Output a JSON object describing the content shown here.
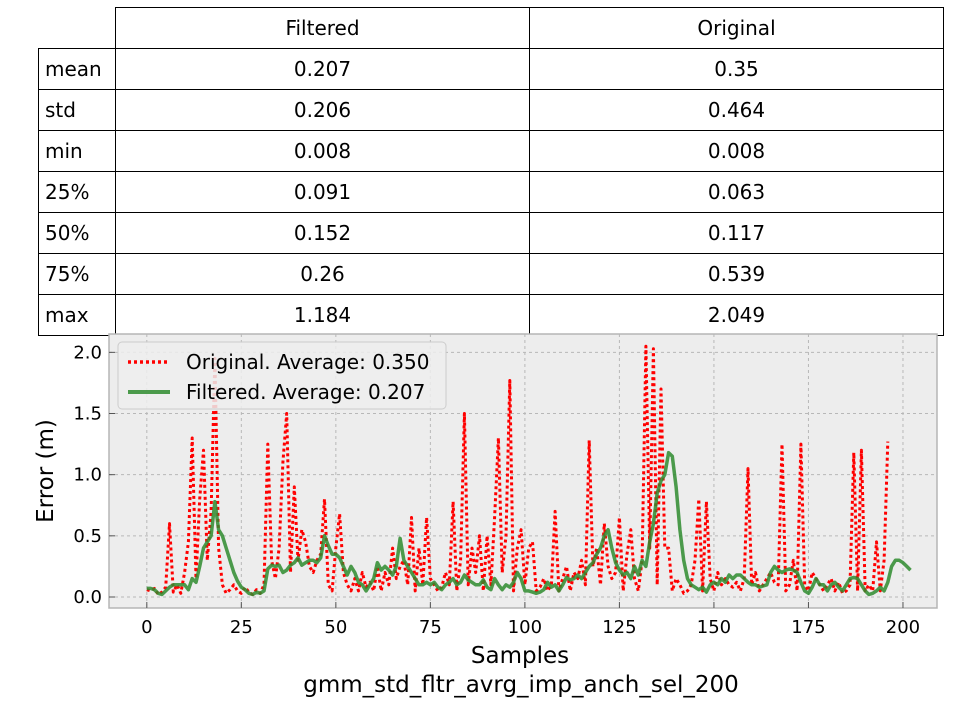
{
  "stats_table": {
    "columns": [
      "Filtered",
      "Original"
    ],
    "rows": [
      {
        "label": "mean",
        "values": [
          "0.207",
          "0.35"
        ]
      },
      {
        "label": "std",
        "values": [
          "0.206",
          "0.464"
        ]
      },
      {
        "label": "min",
        "values": [
          "0.008",
          "0.008"
        ]
      },
      {
        "label": "25%",
        "values": [
          "0.091",
          "0.063"
        ]
      },
      {
        "label": "50%",
        "values": [
          "0.152",
          "0.117"
        ]
      },
      {
        "label": "75%",
        "values": [
          "0.26",
          "0.539"
        ]
      },
      {
        "label": "max",
        "values": [
          "1.184",
          "2.049"
        ]
      }
    ]
  },
  "chart_data": {
    "type": "line",
    "title": "gmm_std_fltr_avrg_imp_anch_sel_200",
    "xlabel": "Samples",
    "ylabel": "Error (m)",
    "xlim": [
      -10,
      209
    ],
    "ylim": [
      -0.09,
      2.15
    ],
    "xticks": [
      0,
      25,
      50,
      75,
      100,
      125,
      150,
      175,
      200
    ],
    "yticks": [
      0.0,
      0.5,
      1.0,
      1.5,
      2.0
    ],
    "xtick_labels": [
      "0",
      "25",
      "50",
      "75",
      "100",
      "125",
      "150",
      "175",
      "200"
    ],
    "ytick_labels": [
      "0.0",
      "0.5",
      "1.0",
      "1.5",
      "2.0"
    ],
    "grid": true,
    "legend_position": "top-left",
    "series": [
      {
        "name": "Original. Average: 0.350",
        "color": "#ff0000",
        "style": "dotted",
        "values": [
          0.06,
          0.05,
          0.07,
          0.02,
          0.04,
          0.08,
          0.6,
          0.04,
          0.1,
          0.03,
          0.2,
          0.45,
          1.3,
          0.15,
          0.8,
          1.2,
          0.3,
          0.7,
          1.95,
          0.4,
          0.1,
          0.03,
          0.06,
          0.1,
          0.05,
          0.03,
          0.08,
          0.04,
          0.02,
          0.06,
          0.03,
          0.1,
          1.25,
          0.3,
          0.15,
          0.4,
          1.1,
          1.5,
          0.2,
          0.9,
          0.3,
          0.55,
          0.45,
          0.25,
          0.2,
          0.3,
          0.35,
          0.8,
          0.1,
          0.05,
          0.4,
          0.68,
          0.2,
          0.1,
          0.05,
          0.15,
          0.05,
          0.2,
          0.08,
          0.12,
          0.05,
          0.25,
          0.05,
          0.2,
          0.1,
          0.4,
          0.15,
          0.25,
          0.3,
          0.1,
          0.65,
          0.05,
          0.4,
          0.1,
          0.65,
          0.15,
          0.1,
          0.05,
          0.08,
          0.2,
          0.1,
          0.78,
          0.05,
          0.3,
          1.5,
          0.1,
          0.4,
          0.2,
          0.5,
          0.05,
          0.5,
          0.1,
          0.65,
          1.3,
          0.2,
          0.5,
          1.77,
          0.05,
          0.4,
          0.55,
          0.1,
          0.4,
          0.45,
          0.05,
          0.08,
          0.15,
          0.05,
          0.1,
          0.7,
          0.05,
          0.15,
          0.25,
          0.05,
          0.2,
          0.15,
          0.3,
          0.1,
          1.28,
          0.25,
          0.4,
          0.1,
          0.6,
          0.25,
          0.15,
          0.2,
          0.65,
          0.05,
          0.35,
          0.55,
          0.15,
          0.05,
          0.3,
          2.05,
          0.4,
          2.03,
          0.1,
          1.7,
          0.4,
          0.4,
          0.05,
          0.15,
          0.1,
          0.03,
          0.05,
          0.1,
          0.3,
          0.8,
          0.05,
          0.78,
          0.15,
          0.05,
          0.2,
          0.1,
          0.15,
          0.1,
          0.08,
          0.12,
          0.05,
          0.15,
          1.05,
          0.1,
          0.2,
          0.05,
          0.1,
          0.15,
          0.2,
          0.12,
          0.1,
          1.25,
          0.05,
          0.1,
          0.3,
          0.05,
          1.25,
          0.1,
          0.05,
          0.2,
          0.15,
          0.1,
          0.05,
          0.1,
          0.15,
          0.05,
          0.12,
          0.03,
          0.05,
          0.1,
          1.18,
          0.05,
          1.2,
          0.05,
          0.1,
          0.05,
          0.45,
          0.05,
          0.3,
          1.27
        ]
      },
      {
        "name": "Filtered. Average: 0.207",
        "color": "#2e8b2e",
        "style": "solid",
        "values": [
          0.07,
          0.07,
          0.06,
          0.03,
          0.02,
          0.05,
          0.08,
          0.1,
          0.1,
          0.1,
          0.1,
          0.06,
          0.15,
          0.12,
          0.25,
          0.4,
          0.45,
          0.5,
          0.78,
          0.55,
          0.5,
          0.4,
          0.3,
          0.2,
          0.13,
          0.08,
          0.06,
          0.03,
          0.02,
          0.04,
          0.03,
          0.05,
          0.23,
          0.26,
          0.25,
          0.26,
          0.2,
          0.22,
          0.26,
          0.28,
          0.32,
          0.26,
          0.28,
          0.3,
          0.3,
          0.28,
          0.32,
          0.5,
          0.42,
          0.35,
          0.35,
          0.32,
          0.25,
          0.18,
          0.25,
          0.2,
          0.12,
          0.1,
          0.05,
          0.1,
          0.15,
          0.28,
          0.22,
          0.25,
          0.22,
          0.18,
          0.25,
          0.48,
          0.3,
          0.25,
          0.2,
          0.15,
          0.1,
          0.1,
          0.12,
          0.1,
          0.12,
          0.08,
          0.06,
          0.1,
          0.12,
          0.15,
          0.1,
          0.12,
          0.18,
          0.14,
          0.12,
          0.1,
          0.1,
          0.14,
          0.08,
          0.06,
          0.15,
          0.1,
          0.06,
          0.1,
          0.08,
          0.12,
          0.2,
          0.15,
          0.05,
          0.05,
          0.04,
          0.03,
          0.04,
          0.06,
          0.12,
          0.08,
          0.1,
          0.05,
          0.1,
          0.16,
          0.14,
          0.15,
          0.18,
          0.15,
          0.2,
          0.25,
          0.28,
          0.35,
          0.4,
          0.5,
          0.55,
          0.4,
          0.28,
          0.22,
          0.18,
          0.2,
          0.15,
          0.25,
          0.18,
          0.3,
          0.25,
          0.45,
          0.6,
          0.85,
          0.95,
          1.0,
          1.18,
          1.15,
          0.9,
          0.55,
          0.3,
          0.15,
          0.1,
          0.08,
          0.06,
          0.08,
          0.04,
          0.1,
          0.12,
          0.1,
          0.15,
          0.12,
          0.18,
          0.15,
          0.18,
          0.18,
          0.15,
          0.12,
          0.1,
          0.1,
          0.08,
          0.09,
          0.1,
          0.2,
          0.25,
          0.22,
          0.2,
          0.22,
          0.23,
          0.22,
          0.2,
          0.12,
          0.05,
          0.03,
          0.08,
          0.15,
          0.1,
          0.1,
          0.05,
          0.1,
          0.12,
          0.08,
          0.05,
          0.1,
          0.15,
          0.16,
          0.15,
          0.1,
          0.05,
          0.02,
          0.03,
          0.05,
          0.08,
          0.05,
          0.12,
          0.25,
          0.3,
          0.3,
          0.28,
          0.25,
          0.22
        ]
      }
    ]
  }
}
